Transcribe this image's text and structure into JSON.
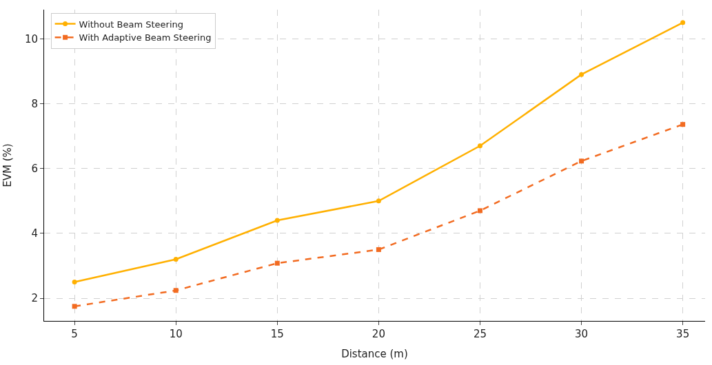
{
  "chart_data": {
    "type": "line",
    "xlabel": "Distance (m)",
    "ylabel": "EVM (%)",
    "x": [
      5,
      10,
      15,
      20,
      25,
      30,
      35
    ],
    "series": [
      {
        "name": "Without Beam Steering",
        "color": "#ffb000",
        "values": [
          2.5,
          3.2,
          4.4,
          5.0,
          6.7,
          8.9,
          10.5
        ],
        "marker": "circle",
        "line_style": "solid"
      },
      {
        "name": "With Adaptive Beam Steering",
        "color": "#f26b21",
        "values": [
          1.75,
          2.24,
          3.08,
          3.5,
          4.7,
          6.23,
          7.36
        ],
        "marker": "square",
        "line_style": "dashed"
      }
    ],
    "xlim": [
      3.5,
      36.1
    ],
    "ylim": [
      1.3,
      10.9
    ],
    "xticks": [
      5,
      10,
      15,
      20,
      25,
      30,
      35
    ],
    "yticks": [
      2,
      4,
      6,
      8,
      10
    ],
    "grid": true,
    "legend": "top left"
  }
}
